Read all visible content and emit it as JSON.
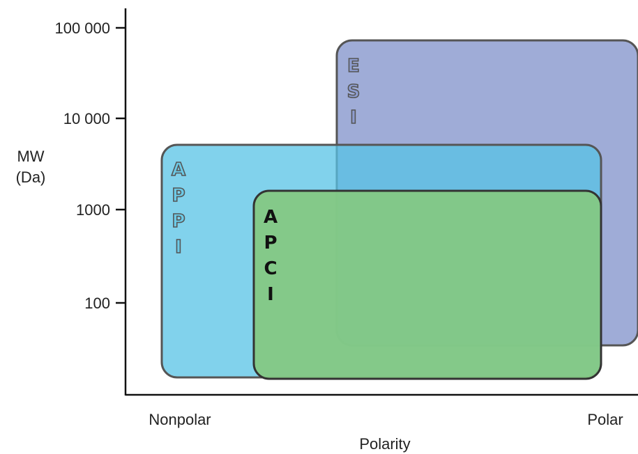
{
  "axes": {
    "y_label_line1": "MW",
    "y_label_line2": "(Da)",
    "x_label": "Polarity",
    "x_tick_left": "Nonpolar",
    "x_tick_right": "Polar",
    "y_ticks": [
      "100 000",
      "10 000",
      "1000",
      "100"
    ]
  },
  "regions": {
    "esi": {
      "letters": [
        "E",
        "S",
        "I"
      ],
      "fill": "#8e9dd0",
      "text_fill": "#8e9dd0",
      "text_stroke": "#555555"
    },
    "appi": {
      "letters": [
        "A",
        "P",
        "P",
        "I"
      ],
      "fill": "#6ccbe8",
      "text_fill": "#6ccbe8",
      "text_stroke": "#555555"
    },
    "apci": {
      "letters": [
        "A",
        "P",
        "C",
        "I"
      ],
      "fill": "#7fc985",
      "text_fill": "#111111",
      "text_stroke": "#111111"
    }
  }
}
